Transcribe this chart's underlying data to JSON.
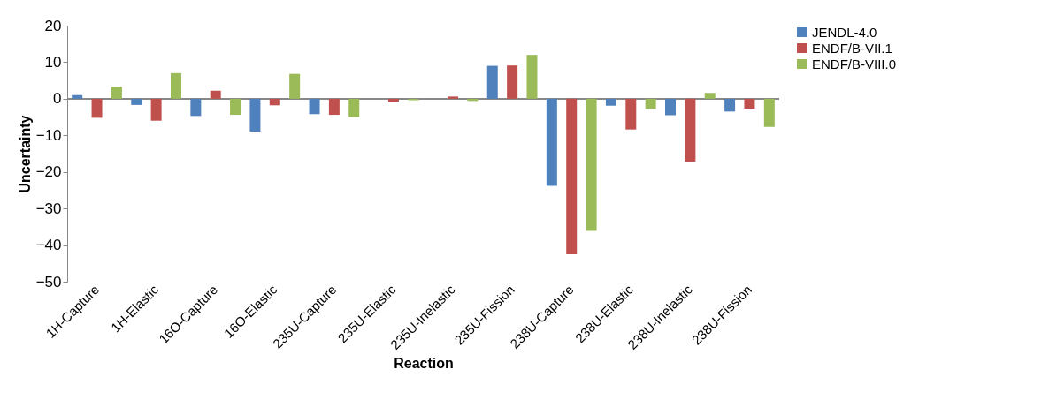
{
  "chart_data": {
    "type": "bar",
    "xlabel": "Reaction",
    "ylabel": "Uncertainty",
    "categories": [
      "1H-Capture",
      "1H-Elastic",
      "16O-Capture",
      "16O-Elastic",
      "235U-Capture",
      "235U-Elastic",
      "235U-Inelastic",
      "235U-Fission",
      "238U-Capture",
      "238U-Elastic",
      "238U-Inelastic",
      "238U-Fission"
    ],
    "series": [
      {
        "name": "JENDL-4.0",
        "color": "#4f81bd",
        "values": [
          1.0,
          -1.7,
          -4.7,
          -9.0,
          -4.2,
          0,
          0,
          9.0,
          -23.8,
          -1.9,
          -4.5,
          -3.5
        ]
      },
      {
        "name": "ENDF/B-VII.1",
        "color": "#c0504d",
        "values": [
          -5.2,
          -6.0,
          2.2,
          -1.8,
          -4.4,
          -0.8,
          0.6,
          9.1,
          -42.5,
          -8.4,
          -17.2,
          -2.7
        ]
      },
      {
        "name": "ENDF/B-VIII.0",
        "color": "#9bbb59",
        "values": [
          3.3,
          7.0,
          -4.4,
          6.8,
          -5.0,
          -0.4,
          -0.6,
          12.0,
          -36.1,
          -2.8,
          1.6,
          -7.7
        ]
      }
    ],
    "ylim": [
      -50,
      20
    ],
    "yticks": [
      -50,
      -40,
      -30,
      -20,
      -10,
      0,
      10,
      20
    ],
    "grid": false,
    "ref_lines": [
      {
        "axis": "y",
        "value": 0,
        "color": "#888888"
      }
    ],
    "legend": "right"
  }
}
